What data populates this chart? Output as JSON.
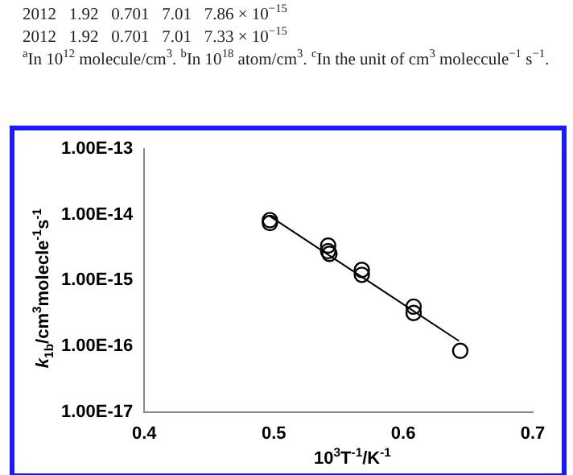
{
  "chart_data": {
    "type": "scatter",
    "annotations": [
      "2012   1.92   0.701   7.01   7.86 × 10$^{−15}$",
      "2012   1.92   0.701   7.01   7.33 × 10$^{−15}$",
      "$^{a}$In 10$^{12}$ molecule/cm$^{3}$. $^{b}$In 10$^{18}$ atom/cm$^{3}$. $^{c}$In the unit of cm$^{3}$ moleccule$^{−1}$ s$^{−1}$."
    ],
    "xlabel": "10$^{3}$T$^{-1}$/K$^{-1}$",
    "ylabel": "k$_{1b}$/cm$^{3}$molecle$^{-1}$s$^{-1}$",
    "series": [
      {
        "color": "#000000",
        "marker": "circle",
        "x": [
          0.497,
          0.497,
          0.542,
          0.542,
          0.543,
          0.568,
          0.568,
          0.608,
          0.608,
          0.644
        ],
        "values": [
          8.3e-15,
          7.5e-15,
          3.4e-15,
          2.8e-15,
          2.55e-15,
          1.45e-15,
          1.22e-15,
          4e-16,
          3.2e-16,
          8.5e-17
        ]
      },
      {
        "type": "line",
        "color": "#000000",
        "marker": "none",
        "x": [
          0.497,
          0.643
        ],
        "values": [
          9.5e-15,
          1.2e-16
        ]
      }
    ],
    "xlim": [
      0.4,
      0.7
    ],
    "xticks": [
      0.4,
      0.5,
      0.6,
      0.7
    ],
    "ylim": [
      1e-17,
      1e-13
    ],
    "log": "y",
    "yticks": [
      {
        "value": 1e-17,
        "label": "1.00E-17"
      },
      {
        "value": 1e-16,
        "label": "1.00E-16"
      },
      {
        "value": 1e-15,
        "label": "1.00E-15"
      },
      {
        "value": 1e-14,
        "label": "1.00E-14"
      },
      {
        "value": 1e-13,
        "label": "1.00E-13"
      }
    ],
    "grid": false,
    "legend": false
  }
}
